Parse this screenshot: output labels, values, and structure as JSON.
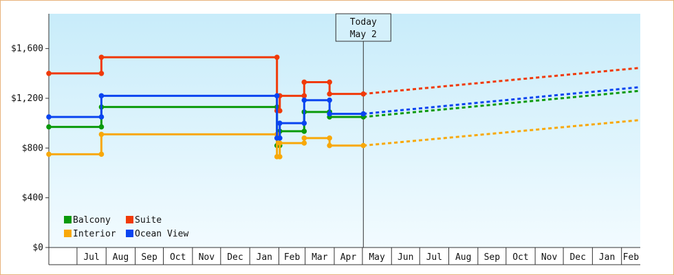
{
  "chart_data": {
    "type": "line",
    "title": "",
    "xlabel": "",
    "ylabel": "",
    "ylim": [
      0,
      1880
    ],
    "y_ticks": [
      {
        "value": 0,
        "label": "$0"
      },
      {
        "value": 400,
        "label": "$400"
      },
      {
        "value": 800,
        "label": "$800"
      },
      {
        "value": 1200,
        "label": "$1,200"
      },
      {
        "value": 1600,
        "label": "$1,600"
      }
    ],
    "x_ticks": [
      {
        "date": "2024-07-01",
        "label": "Jul"
      },
      {
        "date": "2024-08-01",
        "label": "Aug"
      },
      {
        "date": "2024-09-01",
        "label": "Sep"
      },
      {
        "date": "2024-10-01",
        "label": "Oct"
      },
      {
        "date": "2024-11-01",
        "label": "Nov"
      },
      {
        "date": "2024-12-01",
        "label": "Dec"
      },
      {
        "date": "2025-01-01",
        "label": "Jan"
      },
      {
        "date": "2025-02-01",
        "label": "Feb"
      },
      {
        "date": "2025-03-01",
        "label": "Mar"
      },
      {
        "date": "2025-04-01",
        "label": "Apr"
      },
      {
        "date": "2025-05-01",
        "label": "May"
      },
      {
        "date": "2025-06-01",
        "label": "Jun"
      },
      {
        "date": "2025-07-01",
        "label": "Jul"
      },
      {
        "date": "2025-08-01",
        "label": "Aug"
      },
      {
        "date": "2025-09-01",
        "label": "Sep"
      },
      {
        "date": "2025-10-01",
        "label": "Oct"
      },
      {
        "date": "2025-11-01",
        "label": "Nov"
      },
      {
        "date": "2025-12-01",
        "label": "Dec"
      },
      {
        "date": "2026-01-01",
        "label": "Jan"
      },
      {
        "date": "2026-02-01",
        "label": "Feb"
      }
    ],
    "x_range": [
      "2024-06-01",
      "2026-02-21"
    ],
    "today": {
      "date": "2025-05-02",
      "line1": "Today",
      "line2": "May 2"
    },
    "grid": false,
    "legend_position": "bottom-left",
    "series": [
      {
        "name": "Balcony",
        "color": "#0a9a0a",
        "points": [
          [
            "2024-06-01",
            970
          ],
          [
            "2024-07-27",
            970
          ],
          [
            "2024-07-27",
            1130
          ],
          [
            "2025-01-30",
            1130
          ],
          [
            "2025-01-30",
            820
          ],
          [
            "2025-02-02",
            820
          ],
          [
            "2025-02-02",
            935
          ],
          [
            "2025-02-28",
            935
          ],
          [
            "2025-02-28",
            1090
          ],
          [
            "2025-03-27",
            1090
          ],
          [
            "2025-03-27",
            1050
          ],
          [
            "2025-05-02",
            1050
          ]
        ],
        "forecast": [
          [
            "2025-05-02",
            1050
          ],
          [
            "2026-02-21",
            1260
          ]
        ]
      },
      {
        "name": "Suite",
        "color": "#f03a08",
        "points": [
          [
            "2024-06-01",
            1400
          ],
          [
            "2024-07-27",
            1400
          ],
          [
            "2024-07-27",
            1530
          ],
          [
            "2025-01-30",
            1530
          ],
          [
            "2025-01-30",
            1100
          ],
          [
            "2025-02-02",
            1100
          ],
          [
            "2025-02-02",
            1220
          ],
          [
            "2025-02-28",
            1220
          ],
          [
            "2025-02-28",
            1330
          ],
          [
            "2025-03-27",
            1330
          ],
          [
            "2025-03-27",
            1235
          ],
          [
            "2025-05-02",
            1235
          ]
        ],
        "forecast": [
          [
            "2025-05-02",
            1235
          ],
          [
            "2026-02-21",
            1445
          ]
        ]
      },
      {
        "name": "Interior",
        "color": "#f8a808",
        "points": [
          [
            "2024-06-01",
            750
          ],
          [
            "2024-07-27",
            750
          ],
          [
            "2024-07-27",
            910
          ],
          [
            "2025-01-30",
            910
          ],
          [
            "2025-01-30",
            730
          ],
          [
            "2025-02-02",
            730
          ],
          [
            "2025-02-02",
            840
          ],
          [
            "2025-02-28",
            840
          ],
          [
            "2025-02-28",
            880
          ],
          [
            "2025-03-27",
            880
          ],
          [
            "2025-03-27",
            820
          ],
          [
            "2025-05-02",
            820
          ]
        ],
        "forecast": [
          [
            "2025-05-02",
            820
          ],
          [
            "2026-02-21",
            1025
          ]
        ]
      },
      {
        "name": "Ocean View",
        "color": "#0a44f0",
        "points": [
          [
            "2024-06-01",
            1050
          ],
          [
            "2024-07-27",
            1050
          ],
          [
            "2024-07-27",
            1220
          ],
          [
            "2025-01-30",
            1220
          ],
          [
            "2025-01-30",
            880
          ],
          [
            "2025-02-02",
            880
          ],
          [
            "2025-02-02",
            1000
          ],
          [
            "2025-02-28",
            1000
          ],
          [
            "2025-02-28",
            1185
          ],
          [
            "2025-03-27",
            1185
          ],
          [
            "2025-03-27",
            1075
          ],
          [
            "2025-05-02",
            1075
          ]
        ],
        "forecast": [
          [
            "2025-05-02",
            1075
          ],
          [
            "2026-02-21",
            1290
          ]
        ]
      }
    ],
    "legend": [
      {
        "name": "Balcony",
        "color": "#0a9a0a"
      },
      {
        "name": "Suite",
        "color": "#f03a08"
      },
      {
        "name": "Interior",
        "color": "#f8a808"
      },
      {
        "name": "Ocean View",
        "color": "#0a44f0"
      }
    ]
  }
}
